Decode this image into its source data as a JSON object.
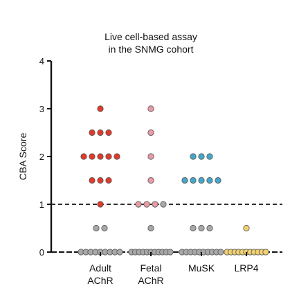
{
  "chart_data": {
    "type": "scatter",
    "title": [
      "Live cell-based assay",
      "in the SNMG cohort"
    ],
    "ylabel": "CBA Score",
    "ylim": [
      0,
      4
    ],
    "yticks": [
      "0",
      "1",
      "2",
      "3",
      "4"
    ],
    "categories": [
      [
        "Adult",
        "AChR"
      ],
      [
        "Fetal",
        "AChR"
      ],
      [
        "MuSK"
      ],
      [
        "LRP4"
      ]
    ],
    "cutoff_line": 1,
    "grid": false,
    "legend": "none",
    "colors": {
      "negative": "#a8a8a8",
      "adult_achr": "#e03a2b",
      "fetal_achr": "#eb9aa4",
      "musk": "#45a6c9",
      "lrp4": "#f0d070"
    },
    "series": [
      {
        "points": [
          {
            "y": 3,
            "n": 1,
            "color": "#e03a2b"
          },
          {
            "y": 2.5,
            "n": 3,
            "color": "#e03a2b"
          },
          {
            "y": 2,
            "n": 5,
            "color": "#e03a2b"
          },
          {
            "y": 1.5,
            "n": 3,
            "color": "#e03a2b"
          },
          {
            "y": 1,
            "n": 1,
            "color": "#e03a2b"
          },
          {
            "y": 0.5,
            "n": 2,
            "color": "#a8a8a8"
          },
          {
            "y": 0,
            "n": 9,
            "color": "#a8a8a8"
          }
        ]
      },
      {
        "points": [
          {
            "y": 3,
            "n": 1,
            "color": "#eb9aa4"
          },
          {
            "y": 2.5,
            "n": 1,
            "color": "#eb9aa4"
          },
          {
            "y": 2,
            "n": 1,
            "color": "#eb9aa4"
          },
          {
            "y": 1.5,
            "n": 1,
            "color": "#eb9aa4"
          },
          {
            "y": 1,
            "n": 3,
            "color": "#eb9aa4"
          },
          {
            "y": 1,
            "n": 1,
            "color": "#a8a8a8",
            "slot": 1
          },
          {
            "y": 0.5,
            "n": 1,
            "color": "#a8a8a8"
          },
          {
            "y": 0,
            "n": 11,
            "color": "#a8a8a8"
          }
        ]
      },
      {
        "points": [
          {
            "y": 2,
            "n": 3,
            "color": "#45a6c9"
          },
          {
            "y": 1.5,
            "n": 5,
            "color": "#45a6c9"
          },
          {
            "y": 0.5,
            "n": 3,
            "color": "#a8a8a8"
          },
          {
            "y": 0,
            "n": 10,
            "color": "#a8a8a8"
          }
        ]
      },
      {
        "points": [
          {
            "y": 0.5,
            "n": 1,
            "color": "#f0d070"
          },
          {
            "y": 0,
            "n": 11,
            "color": "#f0d070"
          }
        ]
      }
    ]
  }
}
